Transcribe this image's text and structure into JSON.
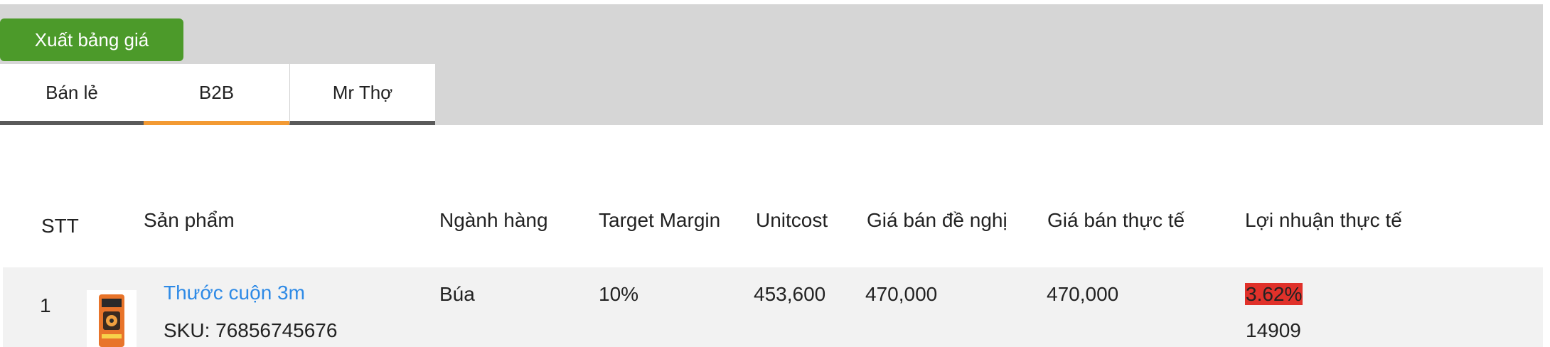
{
  "toolbar": {
    "export_label": "Xuất bảng giá"
  },
  "tabs": [
    {
      "label": "Bán lẻ"
    },
    {
      "label": "B2B"
    },
    {
      "label": "Mr Thợ"
    }
  ],
  "table": {
    "headers": {
      "stt": "STT",
      "product": "Sản phẩm",
      "category": "Ngành hàng",
      "target_margin": "Target Margin",
      "unitcost": "Unitcost",
      "suggested_price": "Giá bán đề nghị",
      "actual_price": "Giá bán thực tế",
      "actual_profit": "Lợi nhuận thực tế"
    },
    "rows": [
      {
        "stt": "1",
        "product_name": "Thước cuộn 3m",
        "sku": "SKU: 76856745676",
        "category": "Búa",
        "target_margin": "10%",
        "unitcost": "453,600",
        "suggested_price": "470,000",
        "actual_price": "470,000",
        "profit_pct": "3.62%",
        "profit_value": "14909"
      }
    ]
  },
  "colors": {
    "export_button": "#4c9a2a",
    "active_tab_underline": "#f39a33",
    "tab_underline": "#5a5a5a",
    "link": "#2e8ae6",
    "negative_badge": "#e0312a"
  }
}
